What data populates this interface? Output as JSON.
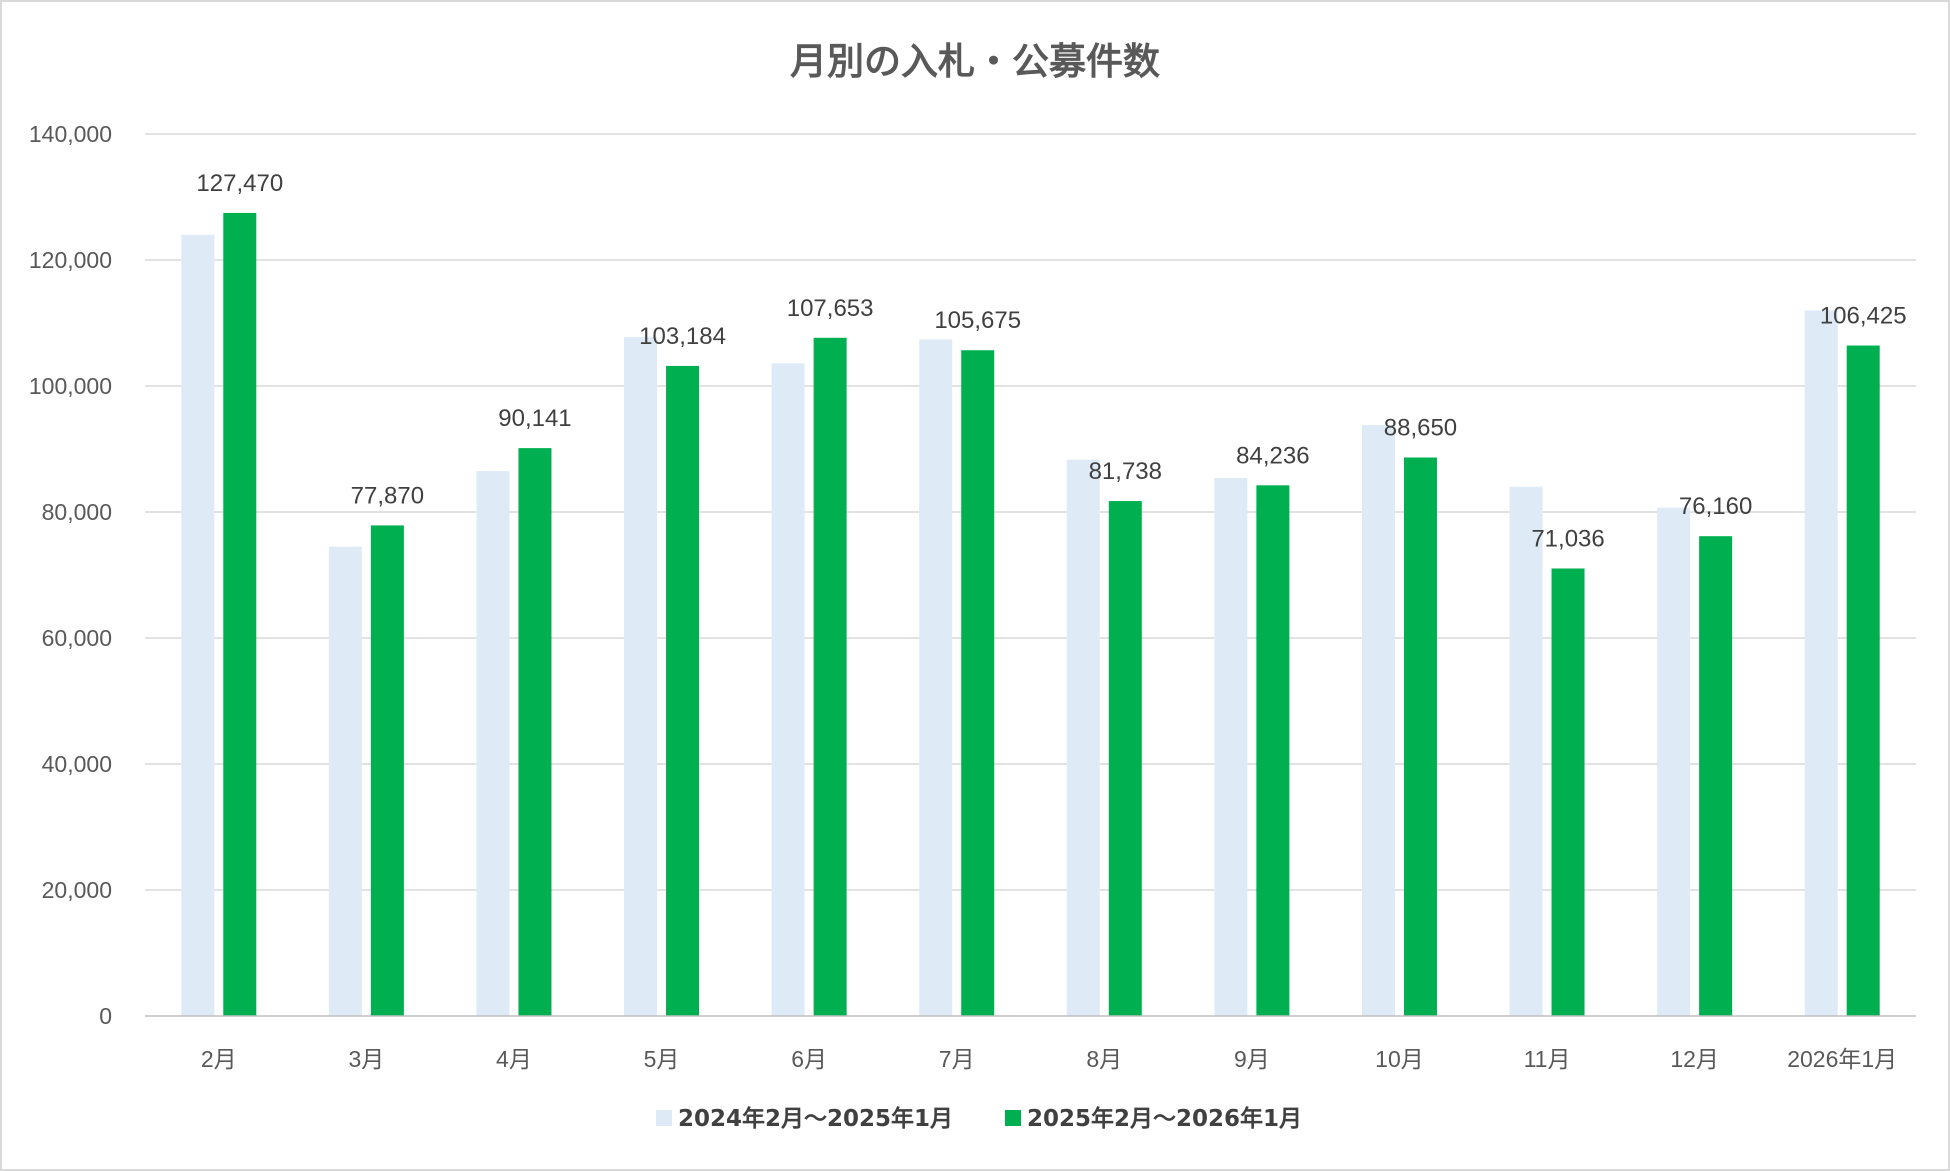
{
  "chart_data": {
    "type": "bar",
    "title": "月別の入札・公募件数",
    "categories": [
      "2月",
      "3月",
      "4月",
      "5月",
      "6月",
      "7月",
      "8月",
      "9月",
      "10月",
      "11月",
      "12月",
      "2026年1月"
    ],
    "series": [
      {
        "name": "2024年2月～2025年1月",
        "color": "#deebf7",
        "values": [
          124000,
          74500,
          86500,
          107800,
          103600,
          107400,
          88300,
          85400,
          93800,
          84000,
          80700,
          112000
        ]
      },
      {
        "name": "2025年2月～2026年1月",
        "color": "#00b050",
        "values": [
          127470,
          77870,
          90141,
          103184,
          107653,
          105675,
          81738,
          84236,
          88650,
          71036,
          76160,
          106425
        ],
        "data_labels": [
          "127,470",
          "77,870",
          "90,141",
          "103,184",
          "107,653",
          "105,675",
          "81,738",
          "84,236",
          "88,650",
          "71,036",
          "76,160",
          "106,425"
        ]
      }
    ],
    "ylim": [
      0,
      140000
    ],
    "yticks": [
      "0",
      "20,000",
      "40,000",
      "60,000",
      "80,000",
      "100,000",
      "120,000",
      "140,000"
    ],
    "ytick_values": [
      0,
      20000,
      40000,
      60000,
      80000,
      100000,
      120000,
      140000
    ],
    "grid": true,
    "legend_position": "bottom"
  }
}
